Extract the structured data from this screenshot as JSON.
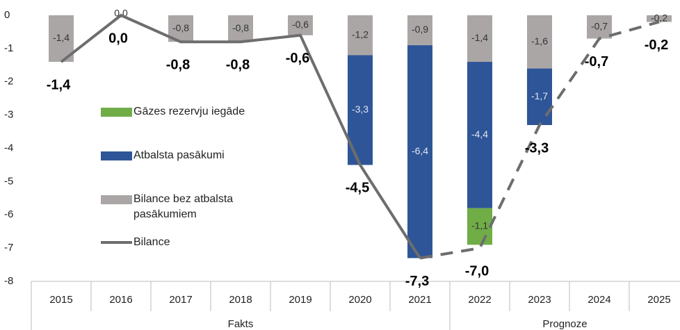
{
  "chart_data": {
    "type": "stacked-bar-line",
    "categories": [
      "2015",
      "2016",
      "2017",
      "2018",
      "2019",
      "2020",
      "2021",
      "2022",
      "2023",
      "2024",
      "2025"
    ],
    "groups": [
      {
        "name": "Fakts",
        "count": 7
      },
      {
        "name": "Prognoze",
        "count": 4
      }
    ],
    "series": [
      {
        "name": "Gāzes rezervju iegāde",
        "kind": "bar",
        "color": "#70ad47",
        "values": [
          null,
          null,
          null,
          null,
          null,
          null,
          null,
          -1.1,
          null,
          null,
          null
        ],
        "value_labels": [
          null,
          null,
          null,
          null,
          null,
          null,
          null,
          "-1,1",
          null,
          null,
          null
        ]
      },
      {
        "name": "Atbalsta pasākumi",
        "kind": "bar",
        "color": "#2e5597",
        "values": [
          null,
          null,
          null,
          null,
          null,
          -3.3,
          -6.4,
          -4.4,
          -1.7,
          null,
          null
        ],
        "value_labels": [
          null,
          null,
          null,
          null,
          null,
          "-3,3",
          "-6,4",
          "-4,4",
          "-1,7",
          null,
          null
        ]
      },
      {
        "name": "Bilance bez atbalsta pasākumiem",
        "kind": "bar",
        "color": "#aba6a6",
        "values": [
          -1.4,
          0.0,
          -0.8,
          -0.8,
          -0.6,
          -1.2,
          -0.9,
          -1.4,
          -1.6,
          -0.7,
          -0.2
        ],
        "value_labels": [
          "-1,4",
          "0,0",
          "-0,8",
          "-0,8",
          "-0,6",
          "-1,2",
          "-0,9",
          "-1,4",
          "-1,6",
          "-0,7",
          "-0,2"
        ]
      },
      {
        "name": "Bilance",
        "kind": "line",
        "color": "#6d6d6d",
        "values": [
          -1.4,
          0.0,
          -0.8,
          -0.8,
          -0.6,
          -4.5,
          -7.3,
          -7.0,
          -3.3,
          -0.7,
          -0.2
        ],
        "value_labels": [
          "-1,4",
          "0,0",
          "-0,8",
          "-0,8",
          "-0,6",
          "-4,5",
          "-7,3",
          "-7,0",
          "-3,3",
          "-0,7",
          "-0,2"
        ]
      }
    ],
    "ylim": [
      -8,
      0
    ],
    "yticks": [
      0,
      -1,
      -2,
      -3,
      -4,
      -5,
      -6,
      -7,
      -8
    ],
    "grid": false
  }
}
